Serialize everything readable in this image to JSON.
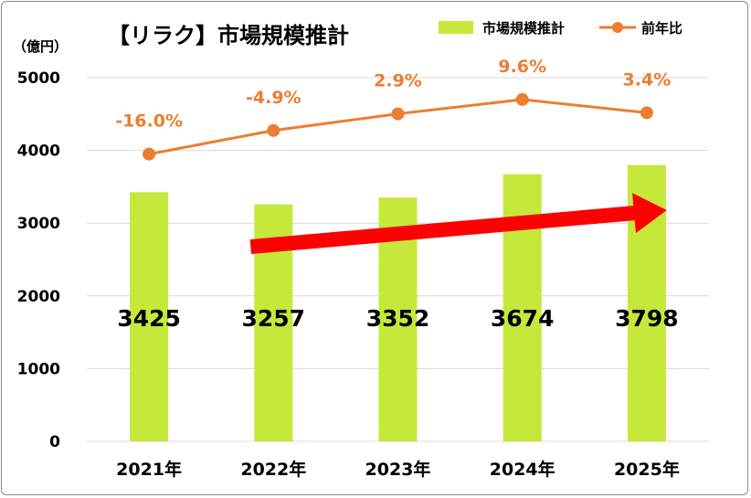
{
  "chart_data": {
    "type": "bar",
    "title": "【リラク】市場規模推計",
    "ylabel": "（億円）",
    "ylim": [
      0,
      5000
    ],
    "yticks": [
      0,
      1000,
      2000,
      3000,
      4000,
      5000
    ],
    "grid": true,
    "legend_position": "top-right",
    "categories": [
      "2021年",
      "2022年",
      "2023年",
      "2024年",
      "2025年"
    ],
    "series": [
      {
        "name": "市場規模推計",
        "type": "bar",
        "color": "#c5e83a",
        "values": [
          3425,
          3257,
          3352,
          3674,
          3798
        ],
        "labels": [
          "3425",
          "3257",
          "3352",
          "3674",
          "3798"
        ]
      },
      {
        "name": "前年比",
        "type": "line",
        "color": "#ed7d31",
        "values": [
          -16.0,
          -4.9,
          2.9,
          9.6,
          3.4
        ],
        "labels": [
          "-16.0%",
          "-4.9%",
          "2.9%",
          "9.6%",
          "3.4%"
        ]
      }
    ],
    "annotation": {
      "type": "arrow",
      "color": "#ff0000",
      "meaning": "upward trend"
    }
  }
}
